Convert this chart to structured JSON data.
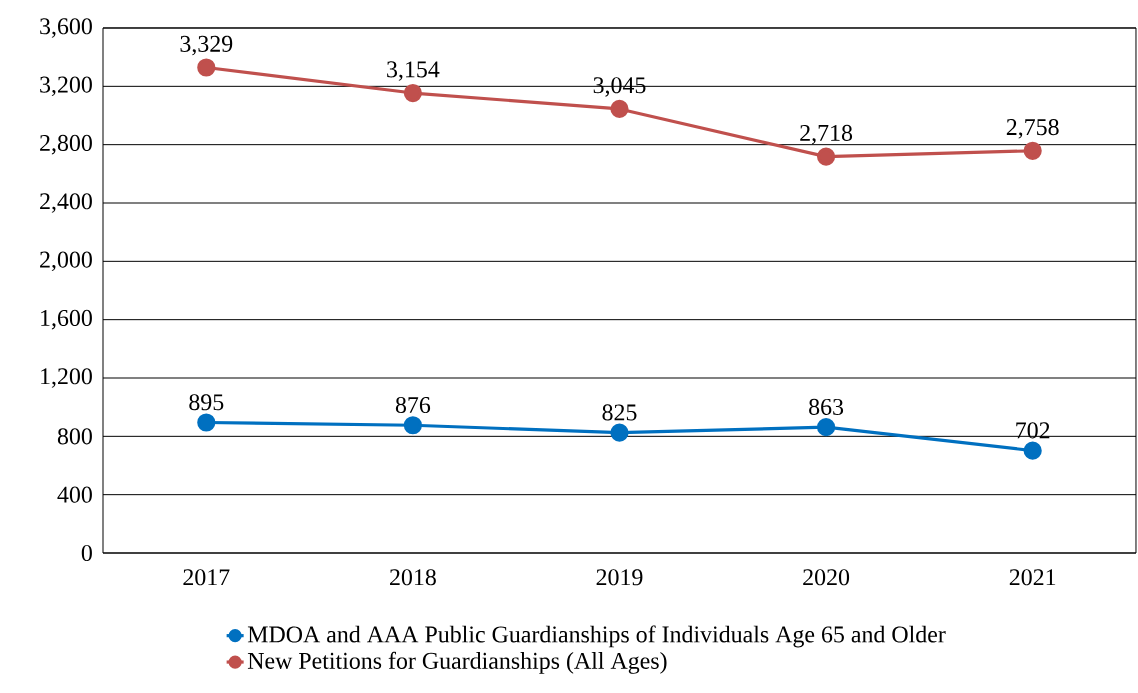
{
  "chart_data": {
    "type": "line",
    "categories": [
      "2017",
      "2018",
      "2019",
      "2020",
      "2021"
    ],
    "series": [
      {
        "name": "MDOA and AAA Public Guardianships of Individuals Age 65 and Older",
        "color": "#0070c0",
        "values": [
          895,
          876,
          825,
          863,
          702
        ],
        "value_labels": [
          "895",
          "876",
          "825",
          "863",
          "702"
        ]
      },
      {
        "name": "New Petitions for Guardianships (All Ages)",
        "color": "#c0504d",
        "values": [
          3329,
          3154,
          3045,
          2718,
          2758
        ],
        "value_labels": [
          "3,329",
          "3,154",
          "3,045",
          "2,718",
          "2,758"
        ]
      }
    ],
    "ylim": [
      0,
      3600
    ],
    "yticks": [
      0,
      400,
      800,
      {
        "value": 1200,
        "label": "1,200"
      },
      {
        "value": 1600,
        "label": "1,600"
      },
      {
        "value": 2000,
        "label": "2,000"
      },
      {
        "value": 2400,
        "label": "2,400"
      },
      {
        "value": 2800,
        "label": "2,800"
      },
      {
        "value": 3200,
        "label": "3,200"
      },
      {
        "value": 3600,
        "label": "3,600"
      }
    ],
    "grid": "y",
    "legend": "bottom",
    "marker": "circle",
    "line_style": "solid"
  }
}
